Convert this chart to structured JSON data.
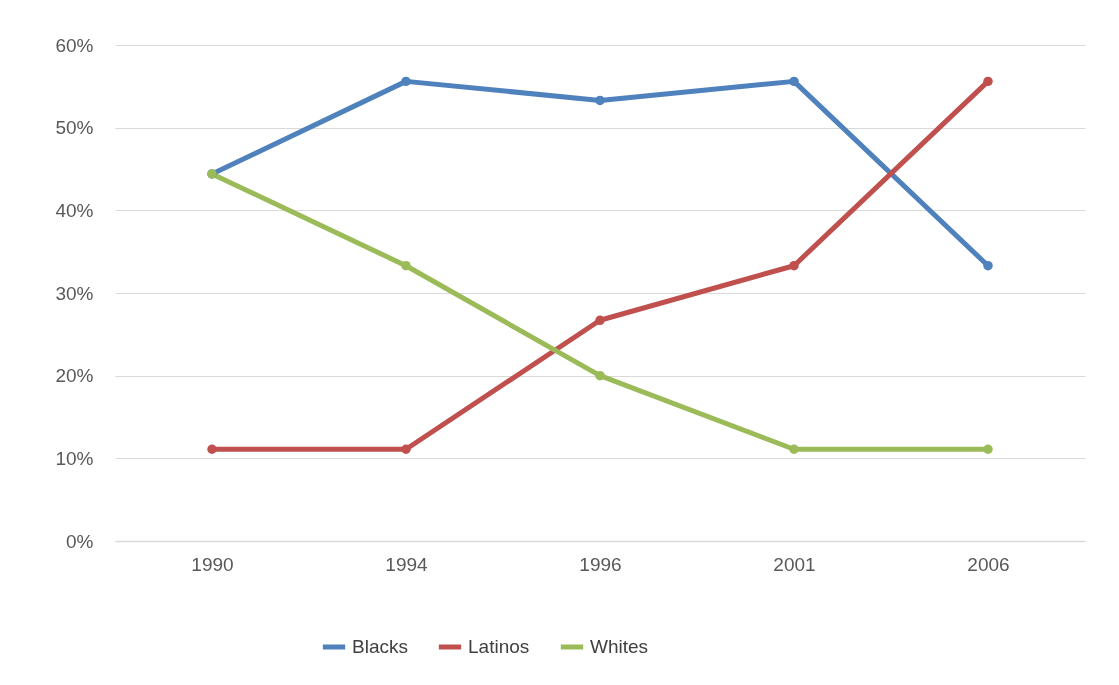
{
  "chart_data": {
    "type": "line",
    "categories": [
      "1990",
      "1994",
      "1996",
      "2001",
      "2006"
    ],
    "series": [
      {
        "name": "Blacks",
        "color": "#4f81bd",
        "values": [
          44.4,
          55.6,
          53.3,
          55.6,
          33.3
        ]
      },
      {
        "name": "Latinos",
        "color": "#c0504d",
        "values": [
          11.1,
          11.1,
          26.7,
          33.3,
          55.6
        ]
      },
      {
        "name": "Whites",
        "color": "#9bbb59",
        "values": [
          44.4,
          33.3,
          20,
          11.1,
          11.1
        ]
      }
    ],
    "ylim": [
      0,
      60
    ],
    "yticks": [
      {
        "value": 0,
        "label": "0%"
      },
      {
        "value": 10,
        "label": "10%"
      },
      {
        "value": 20,
        "label": "20%"
      },
      {
        "value": 30,
        "label": "30%"
      },
      {
        "value": 40,
        "label": "40%"
      },
      {
        "value": 50,
        "label": "50%"
      },
      {
        "value": 60,
        "label": "60%"
      }
    ],
    "grid": "y",
    "legend": "bottom",
    "marker": "circle",
    "line_style": "solid"
  }
}
